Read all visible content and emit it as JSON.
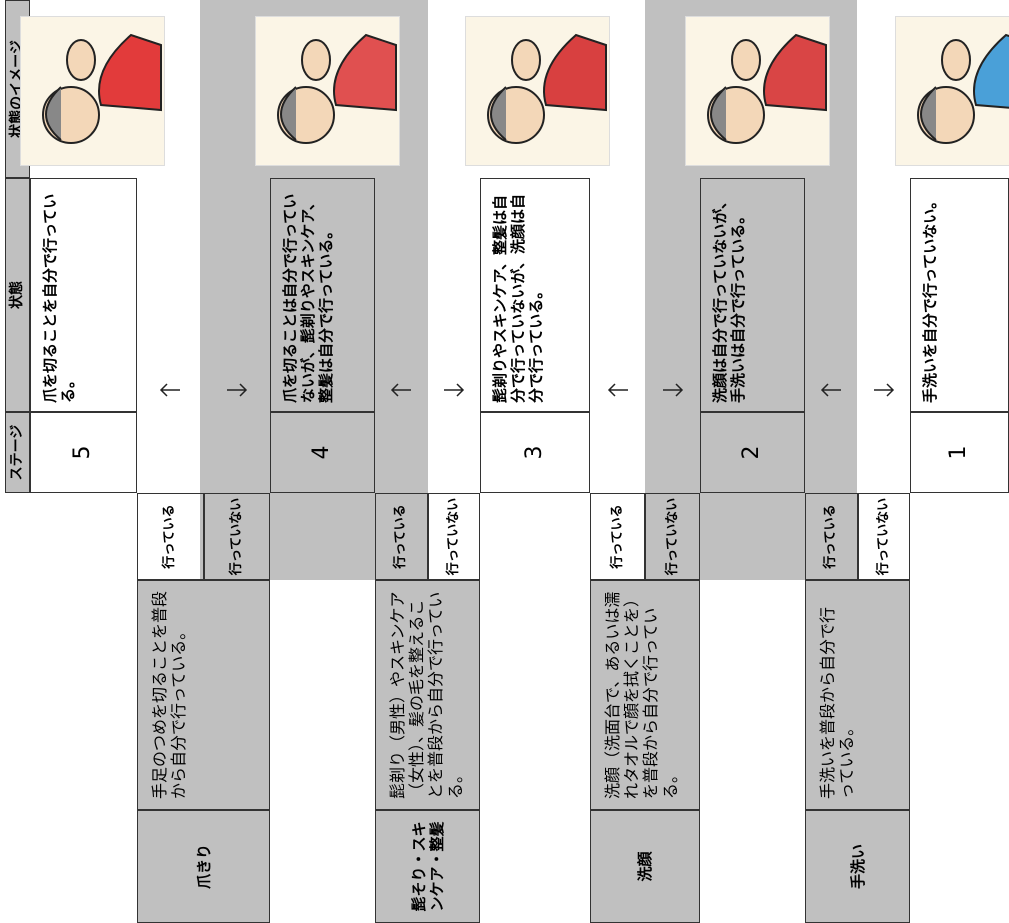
{
  "header": {
    "stage": "ステージ",
    "state": "状態",
    "image": "状態のイメージ"
  },
  "stages": [
    {
      "stage": "5",
      "state": "爪を切ることを自分で行っている。"
    },
    {
      "stage": "4",
      "state": "爪を切ることは自分で行っていないが、髭剃りやスキンケア、整髪は自分で行っている。"
    },
    {
      "stage": "3",
      "state": "髭剃りやスキンケア、整髪は自分で行っていないが、洗顔は自分で行っている。"
    },
    {
      "stage": "2",
      "state": "洗顔は自分で行っていないが、手洗いは自分で行っている。"
    },
    {
      "stage": "1",
      "state": "手洗いを自分で行っていない。"
    }
  ],
  "categories": [
    {
      "name": "爪きり",
      "description": "手足のつめを切ることを普段から自分で行っている。",
      "yes": "行っている",
      "no": "行っていない"
    },
    {
      "name": "髭そり・スキンケア・整髪",
      "description": "髭剃り（男性）やスキンケア（女性）、髪の毛を整えることを普段から自分で行っている。",
      "yes": "行っている",
      "no": "行っていない"
    },
    {
      "name": "洗顔",
      "description": "洗顔（洗面台で、あるいは濡れタオルで顔を拭くことを）を普段から自分で行っている。",
      "yes": "行っている",
      "no": "行っていない"
    },
    {
      "name": "手洗い",
      "description": "手洗いを普段から自分で行っている。",
      "yes": "行っている",
      "no": "行っていない"
    }
  ]
}
